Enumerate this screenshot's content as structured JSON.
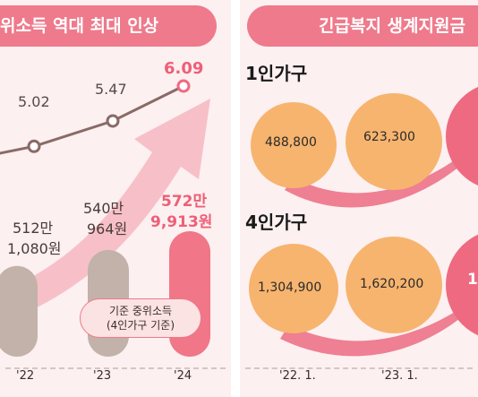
{
  "left_panel": {
    "banner_title": "위소득 역대 최대 인상",
    "legend_label_line1": "기준 중위소득",
    "legend_label_line2": "(4인가구 기준)"
  },
  "right_panel": {
    "banner_title": "긴급복지 생계지원금",
    "group1_label": "1인가구",
    "group2_label": "4인가구"
  },
  "chart_data": [
    {
      "type": "line",
      "title": "",
      "categories": [
        "'22",
        "'23",
        "'24"
      ],
      "series": [
        {
          "values": [
            5.02,
            5.47,
            6.09
          ],
          "labels": [
            "5.02",
            "5.47",
            "6.09"
          ]
        }
      ],
      "accent_color": "#ee6a80",
      "line_color": "#8a6a66"
    },
    {
      "type": "bar",
      "categories": [
        "'22",
        "'23",
        "'24"
      ],
      "values": [
        5121080,
        5400964,
        5729913
      ],
      "labels": [
        {
          "line1": "512만",
          "line2": "1,080원"
        },
        {
          "line1": "540만",
          "line2": "964원"
        },
        {
          "line1": "572만",
          "line2": "9,913원"
        }
      ],
      "colors": [
        "#c3b2aa",
        "#c3b2aa",
        "#f07688"
      ]
    },
    {
      "type": "bubble",
      "categories": [
        "'22. 1.",
        "'23. 1."
      ],
      "series": [
        {
          "name": "1인가구",
          "values": [
            488800,
            623300
          ],
          "labels": [
            "488,800",
            "623,300"
          ]
        },
        {
          "name": "4인가구",
          "values": [
            1304900,
            1620200
          ],
          "labels": [
            "1,304,900",
            "1,620,200"
          ]
        }
      ],
      "partial_label": "1"
    }
  ],
  "colors": {
    "accent": "#ee7a8c",
    "bubble": "#f7b46e",
    "bar_gray": "#c3b2aa"
  }
}
